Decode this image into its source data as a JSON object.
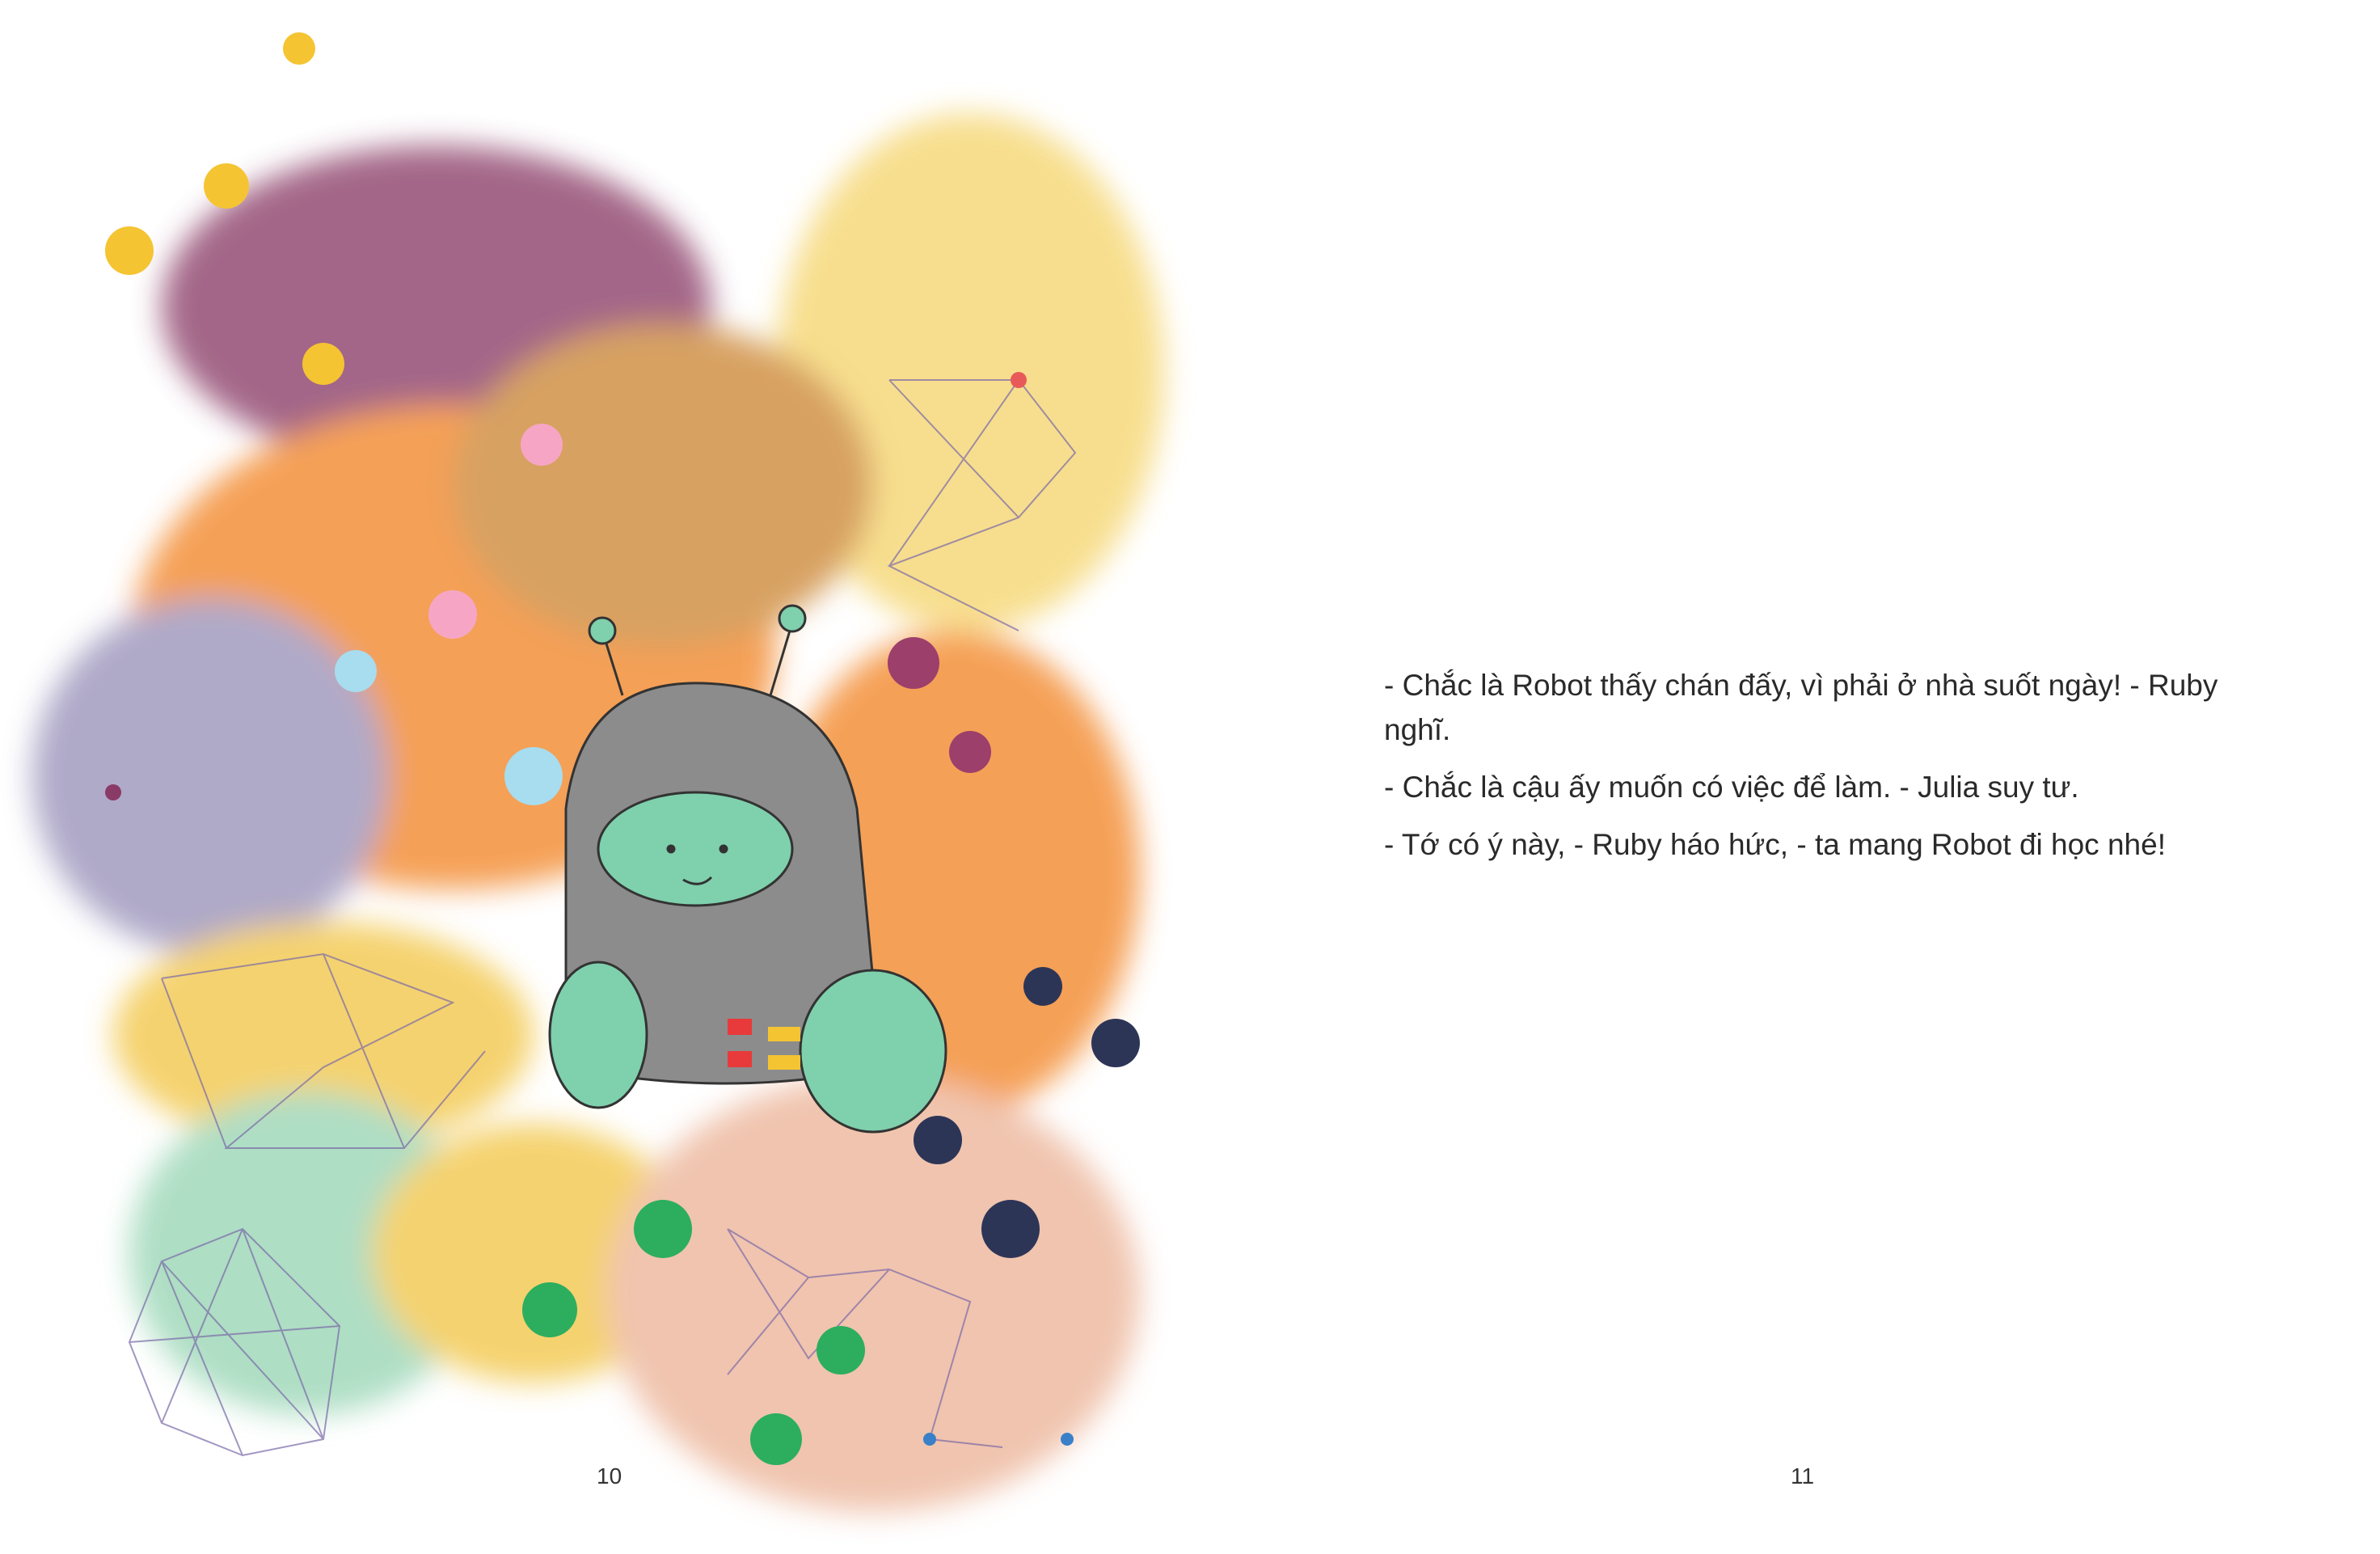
{
  "right_page": {
    "paragraphs": [
      "- Chắc là Robot thấy chán đấy, vì phải ở nhà suốt ngày! - Ruby nghĩ.",
      "- Chắc là cậu ấy muốn có việc để làm. - Julia suy tư.",
      "- Tớ có ý này, - Ruby háo hức, - ta mang Robot đi học nhé!"
    ]
  },
  "page_numbers": {
    "left": "10",
    "right": "11"
  },
  "colors": {
    "purple": "#9c5a7e",
    "yellow": "#f7dc85",
    "orange": "#f4994a",
    "lavender": "#a9a3c4",
    "mint": "#a8dcc0",
    "peach": "#efc0a8",
    "robot_body": "#8c8c8c",
    "robot_face": "#7fd0ad"
  }
}
